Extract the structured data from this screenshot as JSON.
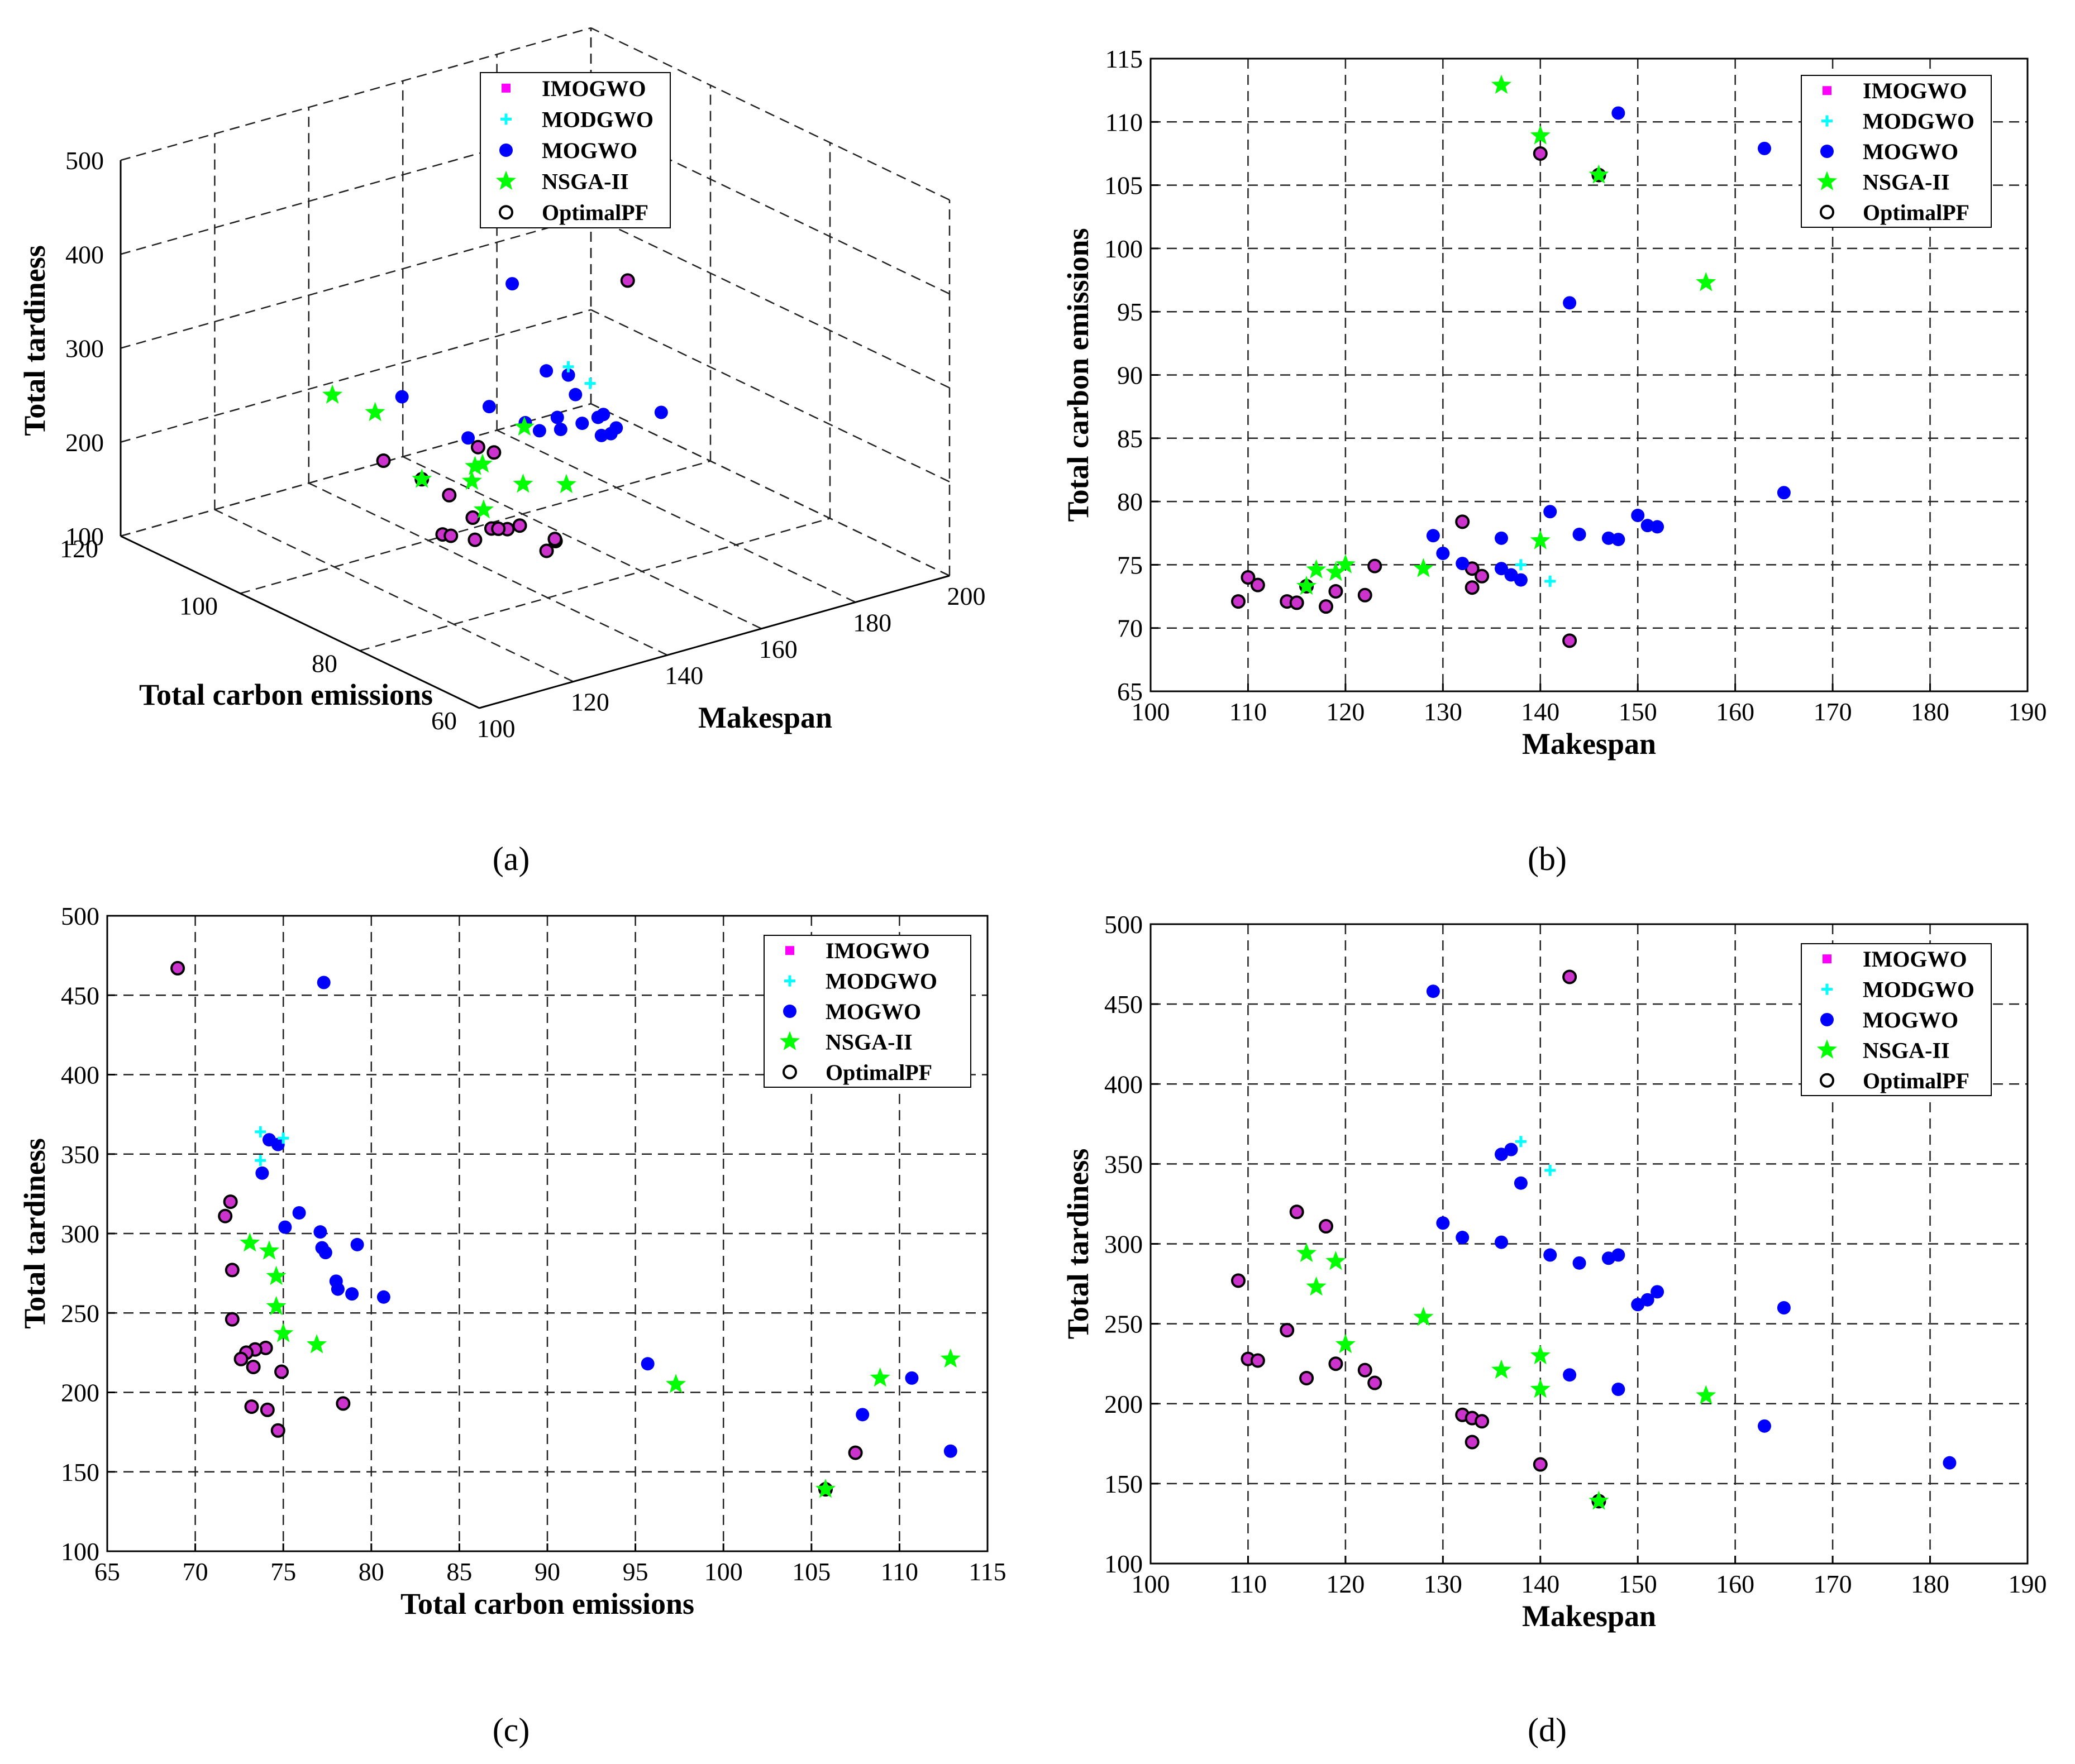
{
  "figure": {
    "captions": [
      "(a)",
      "(b)",
      "(c)",
      "(d)"
    ]
  },
  "legend_labels": [
    "IMOGWO",
    "MODGWO",
    "MOGWO",
    "NSGA-II",
    "OptimalPF"
  ],
  "colors": {
    "IMOGWO": "#ff00ff",
    "MODGWO": "#00ffff",
    "MOGWO": "#0000ff",
    "NSGA-II": "#00ff00",
    "OptimalPF_face": "#cc33cc",
    "OptimalPF_edge": "#000000"
  },
  "chart_data": [
    {
      "panel": "(a)",
      "type": "scatter3d",
      "title": "",
      "xlabel": "Makespan",
      "ylabel": "Total carbon emissions",
      "zlabel": "Total tardiness",
      "xlim": [
        100,
        200
      ],
      "ylim": [
        60,
        120
      ],
      "zlim": [
        100,
        500
      ],
      "xticks": [
        100,
        120,
        140,
        160,
        180,
        200
      ],
      "yticks": [
        60,
        80,
        100,
        120
      ],
      "zticks": [
        100,
        200,
        300,
        400,
        500
      ],
      "grid": true,
      "legend_position": "top-center",
      "series": [
        {
          "name": "OptimalPF",
          "points": [
            [
              109,
              72.1,
              277
            ],
            [
              110,
              74,
              228
            ],
            [
              111,
              73.4,
              227
            ],
            [
              114,
              72.1,
              246
            ],
            [
              115,
              72,
              320
            ],
            [
              116,
              73.3,
              216
            ],
            [
              118,
              71.7,
              311
            ],
            [
              119,
              72.9,
              225
            ],
            [
              122,
              72.6,
              221
            ],
            [
              123,
              74.9,
              213
            ],
            [
              132,
              78.4,
              193
            ],
            [
              133,
              74.7,
              176
            ],
            [
              133,
              73.2,
              191
            ],
            [
              134,
              74.1,
              189
            ],
            [
              140,
              107.5,
              162
            ],
            [
              146,
              105.8,
              139
            ],
            [
              143,
              69,
              467
            ]
          ]
        },
        {
          "name": "MOGWO",
          "points": [
            [
              129,
              77.3,
              458
            ],
            [
              130,
              75.9,
              313
            ],
            [
              132,
              75.1,
              304
            ],
            [
              136,
              74.7,
              301
            ],
            [
              136,
              77.1,
              356
            ],
            [
              137,
              74.2,
              359
            ],
            [
              138,
              73.8,
              338
            ],
            [
              141,
              79.2,
              293
            ],
            [
              143,
              95.7,
              218
            ],
            [
              144,
              77.4,
              288
            ],
            [
              147,
              77.1,
              291
            ],
            [
              148,
              77,
              293
            ],
            [
              148,
              110.7,
              209
            ],
            [
              150,
              78.9,
              262
            ],
            [
              151,
              78.1,
              265
            ],
            [
              152,
              78,
              270
            ],
            [
              163,
              107.9,
              186
            ],
            [
              165,
              80.7,
              260
            ]
          ]
        },
        {
          "name": "MODGWO",
          "points": [
            [
              138,
              75,
              364
            ],
            [
              141,
              73.7,
              346
            ]
          ]
        },
        {
          "name": "NSGA-II",
          "points": [
            [
              116,
              73.3,
              294
            ],
            [
              117,
              74.6,
              273
            ],
            [
              119,
              74.4,
              289
            ],
            [
              120,
              75,
              237
            ],
            [
              128,
              74.7,
              254
            ],
            [
              136,
              112.9,
              221
            ],
            [
              140,
              108.9,
              209
            ],
            [
              140,
              76.9,
              230
            ],
            [
              146,
              105.8,
              139
            ],
            [
              157,
              97.3,
              205
            ]
          ]
        },
        {
          "name": "IMOGWO",
          "points": []
        }
      ]
    },
    {
      "panel": "(b)",
      "type": "scatter",
      "title": "",
      "xlabel": "Makespan",
      "ylabel": "Total carbon emissions",
      "xlim": [
        100,
        190
      ],
      "ylim": [
        65,
        115
      ],
      "xticks": [
        100,
        110,
        120,
        130,
        140,
        150,
        160,
        170,
        180,
        190
      ],
      "yticks": [
        65,
        70,
        75,
        80,
        85,
        90,
        95,
        100,
        105,
        110,
        115
      ],
      "grid": true,
      "legend_position": "top-right",
      "series": [
        {
          "name": "OptimalPF",
          "points": [
            [
              109,
              72.1
            ],
            [
              110,
              74
            ],
            [
              111,
              73.4
            ],
            [
              114,
              72.1
            ],
            [
              115,
              72
            ],
            [
              116,
              73.3
            ],
            [
              118,
              71.7
            ],
            [
              119,
              72.9
            ],
            [
              122,
              72.6
            ],
            [
              123,
              74.9
            ],
            [
              132,
              78.4
            ],
            [
              133,
              74.7
            ],
            [
              133,
              73.2
            ],
            [
              134,
              74.1
            ],
            [
              140,
              107.5
            ],
            [
              146,
              105.8
            ],
            [
              143,
              69
            ]
          ]
        },
        {
          "name": "MOGWO",
          "points": [
            [
              129,
              77.3
            ],
            [
              130,
              75.9
            ],
            [
              132,
              75.1
            ],
            [
              136,
              74.7
            ],
            [
              136,
              77.1
            ],
            [
              137,
              74.2
            ],
            [
              138,
              73.8
            ],
            [
              141,
              79.2
            ],
            [
              143,
              95.7
            ],
            [
              144,
              77.4
            ],
            [
              147,
              77.1
            ],
            [
              148,
              77
            ],
            [
              148,
              110.7
            ],
            [
              150,
              78.9
            ],
            [
              151,
              78.1
            ],
            [
              152,
              78
            ],
            [
              163,
              107.9
            ],
            [
              165,
              80.7
            ]
          ]
        },
        {
          "name": "MODGWO",
          "points": [
            [
              138,
              75
            ],
            [
              141,
              73.7
            ]
          ]
        },
        {
          "name": "NSGA-II",
          "points": [
            [
              116,
              73.3
            ],
            [
              117,
              74.6
            ],
            [
              119,
              74.4
            ],
            [
              120,
              75
            ],
            [
              128,
              74.7
            ],
            [
              136,
              112.9
            ],
            [
              140,
              108.9
            ],
            [
              140,
              76.9
            ],
            [
              146,
              105.8
            ],
            [
              157,
              97.3
            ]
          ]
        },
        {
          "name": "IMOGWO",
          "points": []
        }
      ]
    },
    {
      "panel": "(c)",
      "type": "scatter",
      "title": "",
      "xlabel": "Total carbon emissions",
      "ylabel": "Total tardiness",
      "xlim": [
        65,
        115
      ],
      "ylim": [
        100,
        500
      ],
      "xticks": [
        65,
        70,
        75,
        80,
        85,
        90,
        95,
        100,
        105,
        110,
        115
      ],
      "yticks": [
        100,
        150,
        200,
        250,
        300,
        350,
        400,
        450,
        500
      ],
      "grid": true,
      "legend_position": "top-right",
      "series": [
        {
          "name": "OptimalPF",
          "points": [
            [
              72.1,
              277
            ],
            [
              74,
              228
            ],
            [
              73.4,
              227
            ],
            [
              72.1,
              246
            ],
            [
              72,
              320
            ],
            [
              73.3,
              216
            ],
            [
              71.7,
              311
            ],
            [
              72.9,
              225
            ],
            [
              72.6,
              221
            ],
            [
              74.9,
              213
            ],
            [
              78.4,
              193
            ],
            [
              74.7,
              176
            ],
            [
              73.2,
              191
            ],
            [
              74.1,
              189
            ],
            [
              107.5,
              162
            ],
            [
              105.8,
              139
            ],
            [
              69,
              467
            ]
          ]
        },
        {
          "name": "MOGWO",
          "points": [
            [
              77.3,
              458
            ],
            [
              75.9,
              313
            ],
            [
              75.1,
              304
            ],
            [
              74.7,
              356
            ],
            [
              74.2,
              359
            ],
            [
              73.8,
              338
            ],
            [
              77.1,
              301
            ],
            [
              77.2,
              291
            ],
            [
              77.4,
              288
            ],
            [
              79.2,
              293
            ],
            [
              95.7,
              218
            ],
            [
              78,
              270
            ],
            [
              78.1,
              265
            ],
            [
              78.9,
              262
            ],
            [
              80.7,
              260
            ],
            [
              110.7,
              209
            ],
            [
              107.9,
              186
            ],
            [
              112.9,
              163
            ]
          ]
        },
        {
          "name": "MODGWO",
          "points": [
            [
              73.7,
              364
            ],
            [
              75,
              360
            ],
            [
              73.7,
              346
            ]
          ]
        },
        {
          "name": "NSGA-II",
          "points": [
            [
              73.1,
              294
            ],
            [
              74.2,
              289
            ],
            [
              74.6,
              273
            ],
            [
              74.6,
              254
            ],
            [
              75,
              237
            ],
            [
              76.9,
              230
            ],
            [
              97.3,
              205
            ],
            [
              108.9,
              209
            ],
            [
              112.9,
              221
            ],
            [
              105.8,
              139
            ]
          ]
        },
        {
          "name": "IMOGWO",
          "points": []
        }
      ]
    },
    {
      "panel": "(d)",
      "type": "scatter",
      "title": "",
      "xlabel": "Makespan",
      "ylabel": "Total tardiness",
      "xlim": [
        100,
        190
      ],
      "ylim": [
        100,
        500
      ],
      "xticks": [
        100,
        110,
        120,
        130,
        140,
        150,
        160,
        170,
        180,
        190
      ],
      "yticks": [
        100,
        150,
        200,
        250,
        300,
        350,
        400,
        450,
        500
      ],
      "grid": true,
      "legend_position": "top-right",
      "series": [
        {
          "name": "OptimalPF",
          "points": [
            [
              109,
              277
            ],
            [
              110,
              228
            ],
            [
              111,
              227
            ],
            [
              114,
              246
            ],
            [
              115,
              320
            ],
            [
              116,
              216
            ],
            [
              118,
              311
            ],
            [
              119,
              225
            ],
            [
              122,
              221
            ],
            [
              123,
              213
            ],
            [
              132,
              193
            ],
            [
              133,
              191
            ],
            [
              133,
              176
            ],
            [
              134,
              189
            ],
            [
              140,
              162
            ],
            [
              146,
              139
            ],
            [
              143,
              467
            ]
          ]
        },
        {
          "name": "MOGWO",
          "points": [
            [
              129,
              458
            ],
            [
              130,
              313
            ],
            [
              132,
              304
            ],
            [
              136,
              301
            ],
            [
              136,
              356
            ],
            [
              137,
              359
            ],
            [
              138,
              338
            ],
            [
              141,
              293
            ],
            [
              143,
              218
            ],
            [
              144,
              288
            ],
            [
              147,
              291
            ],
            [
              148,
              293
            ],
            [
              148,
              209
            ],
            [
              150,
              262
            ],
            [
              151,
              265
            ],
            [
              152,
              270
            ],
            [
              163,
              186
            ],
            [
              165,
              260
            ],
            [
              182,
              163
            ]
          ]
        },
        {
          "name": "MODGWO",
          "points": [
            [
              138,
              364
            ],
            [
              141,
              346
            ]
          ]
        },
        {
          "name": "NSGA-II",
          "points": [
            [
              116,
              294
            ],
            [
              117,
              273
            ],
            [
              119,
              289
            ],
            [
              120,
              237
            ],
            [
              128,
              254
            ],
            [
              136,
              221
            ],
            [
              140,
              209
            ],
            [
              140,
              230
            ],
            [
              146,
              139
            ],
            [
              157,
              205
            ]
          ]
        },
        {
          "name": "IMOGWO",
          "points": []
        }
      ]
    }
  ]
}
